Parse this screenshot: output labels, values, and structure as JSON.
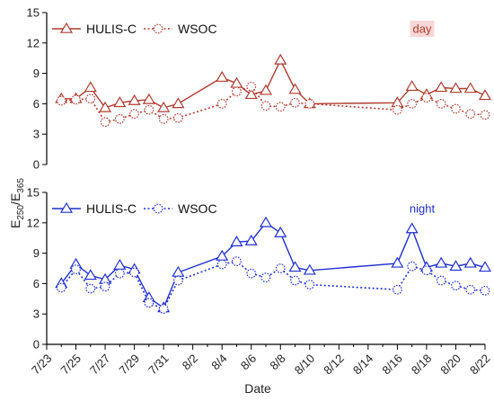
{
  "chart_data": [
    {
      "type": "line",
      "panel_label": "day",
      "ylim": [
        0,
        15
      ],
      "yticks": [
        0,
        3,
        6,
        9,
        12,
        15
      ],
      "color": "#b03a2e",
      "label_bg": "#f8d7d7",
      "legend_position": "top-left",
      "series": [
        {
          "name": "HULIS-C",
          "style": "solid",
          "marker": "triangle",
          "x": [
            "7/24",
            "7/25",
            "7/26",
            "7/27",
            "7/28",
            "7/29",
            "7/30",
            "7/31",
            "8/1",
            "8/4",
            "8/5",
            "8/6",
            "8/7",
            "8/8",
            "8/9",
            "8/10",
            "8/16",
            "8/17",
            "8/18",
            "8/19",
            "8/20",
            "8/21",
            "8/22"
          ],
          "y": [
            6.5,
            6.5,
            7.6,
            5.6,
            6.1,
            6.3,
            6.4,
            5.6,
            6.0,
            8.6,
            8.0,
            6.9,
            7.3,
            10.3,
            7.4,
            6.0,
            6.1,
            7.7,
            6.9,
            7.6,
            7.5,
            7.5,
            6.8
          ]
        },
        {
          "name": "WSOC",
          "style": "dotted",
          "marker": "circle",
          "x": [
            "7/24",
            "7/25",
            "7/26",
            "7/27",
            "7/28",
            "7/29",
            "7/30",
            "7/31",
            "8/1",
            "8/4",
            "8/5",
            "8/6",
            "8/7",
            "8/8",
            "8/9",
            "8/10",
            "8/16",
            "8/17",
            "8/18",
            "8/19",
            "8/20",
            "8/21",
            "8/22"
          ],
          "y": [
            6.3,
            6.4,
            6.5,
            4.2,
            4.5,
            5.0,
            5.4,
            4.5,
            4.6,
            6.0,
            7.2,
            7.7,
            5.8,
            5.7,
            6.1,
            6.0,
            5.4,
            6.0,
            6.6,
            6.0,
            5.5,
            5.0,
            4.9
          ]
        }
      ]
    },
    {
      "type": "line",
      "panel_label": "night",
      "ylim": [
        0,
        15
      ],
      "yticks": [
        0,
        3,
        6,
        9,
        12,
        15
      ],
      "color": "#1f2fd1",
      "label_bg": "",
      "legend_position": "top-left",
      "series": [
        {
          "name": "HULIS-C",
          "style": "solid",
          "marker": "triangle",
          "x": [
            "7/24",
            "7/25",
            "7/26",
            "7/27",
            "7/28",
            "7/29",
            "7/30",
            "7/31",
            "8/1",
            "8/4",
            "8/5",
            "8/6",
            "8/7",
            "8/8",
            "8/9",
            "8/10",
            "8/16",
            "8/17",
            "8/18",
            "8/19",
            "8/20",
            "8/21",
            "8/22"
          ],
          "y": [
            6.0,
            7.9,
            6.8,
            6.4,
            7.8,
            7.4,
            4.6,
            3.6,
            7.1,
            8.7,
            10.1,
            10.2,
            12.0,
            11.0,
            7.6,
            7.3,
            8.0,
            11.4,
            7.6,
            8.0,
            7.7,
            8.0,
            7.6
          ]
        },
        {
          "name": "WSOC",
          "style": "dotted",
          "marker": "circle",
          "x": [
            "7/24",
            "7/25",
            "7/26",
            "7/27",
            "7/28",
            "7/29",
            "7/30",
            "7/31",
            "8/1",
            "8/4",
            "8/5",
            "8/6",
            "8/7",
            "8/8",
            "8/9",
            "8/10",
            "8/16",
            "8/17",
            "8/18",
            "8/19",
            "8/20",
            "8/21",
            "8/22"
          ],
          "y": [
            5.6,
            7.4,
            5.5,
            5.7,
            7.0,
            7.1,
            4.1,
            3.5,
            6.3,
            7.9,
            8.2,
            7.0,
            6.6,
            7.5,
            6.3,
            5.9,
            5.4,
            7.7,
            7.3,
            6.3,
            5.8,
            5.4,
            5.3
          ]
        }
      ]
    }
  ],
  "x_axis": {
    "label": "Date",
    "categories": [
      "7/23",
      "7/24",
      "7/25",
      "7/26",
      "7/27",
      "7/28",
      "7/29",
      "7/30",
      "7/31",
      "8/1",
      "8/2",
      "8/3",
      "8/4",
      "8/5",
      "8/6",
      "8/7",
      "8/8",
      "8/9",
      "8/10",
      "8/11",
      "8/12",
      "8/13",
      "8/14",
      "8/15",
      "8/16",
      "8/17",
      "8/18",
      "8/19",
      "8/20",
      "8/21",
      "8/22"
    ],
    "tick_labels": [
      "7/23",
      "7/25",
      "7/27",
      "7/29",
      "7/31",
      "8/2",
      "8/4",
      "8/6",
      "8/8",
      "8/10",
      "8/12",
      "8/14",
      "8/16",
      "8/18",
      "8/20",
      "8/22"
    ]
  },
  "y_axis": {
    "label_main": "E",
    "label_sub1": "250",
    "label_sep": "/E",
    "label_sub2": "365"
  }
}
